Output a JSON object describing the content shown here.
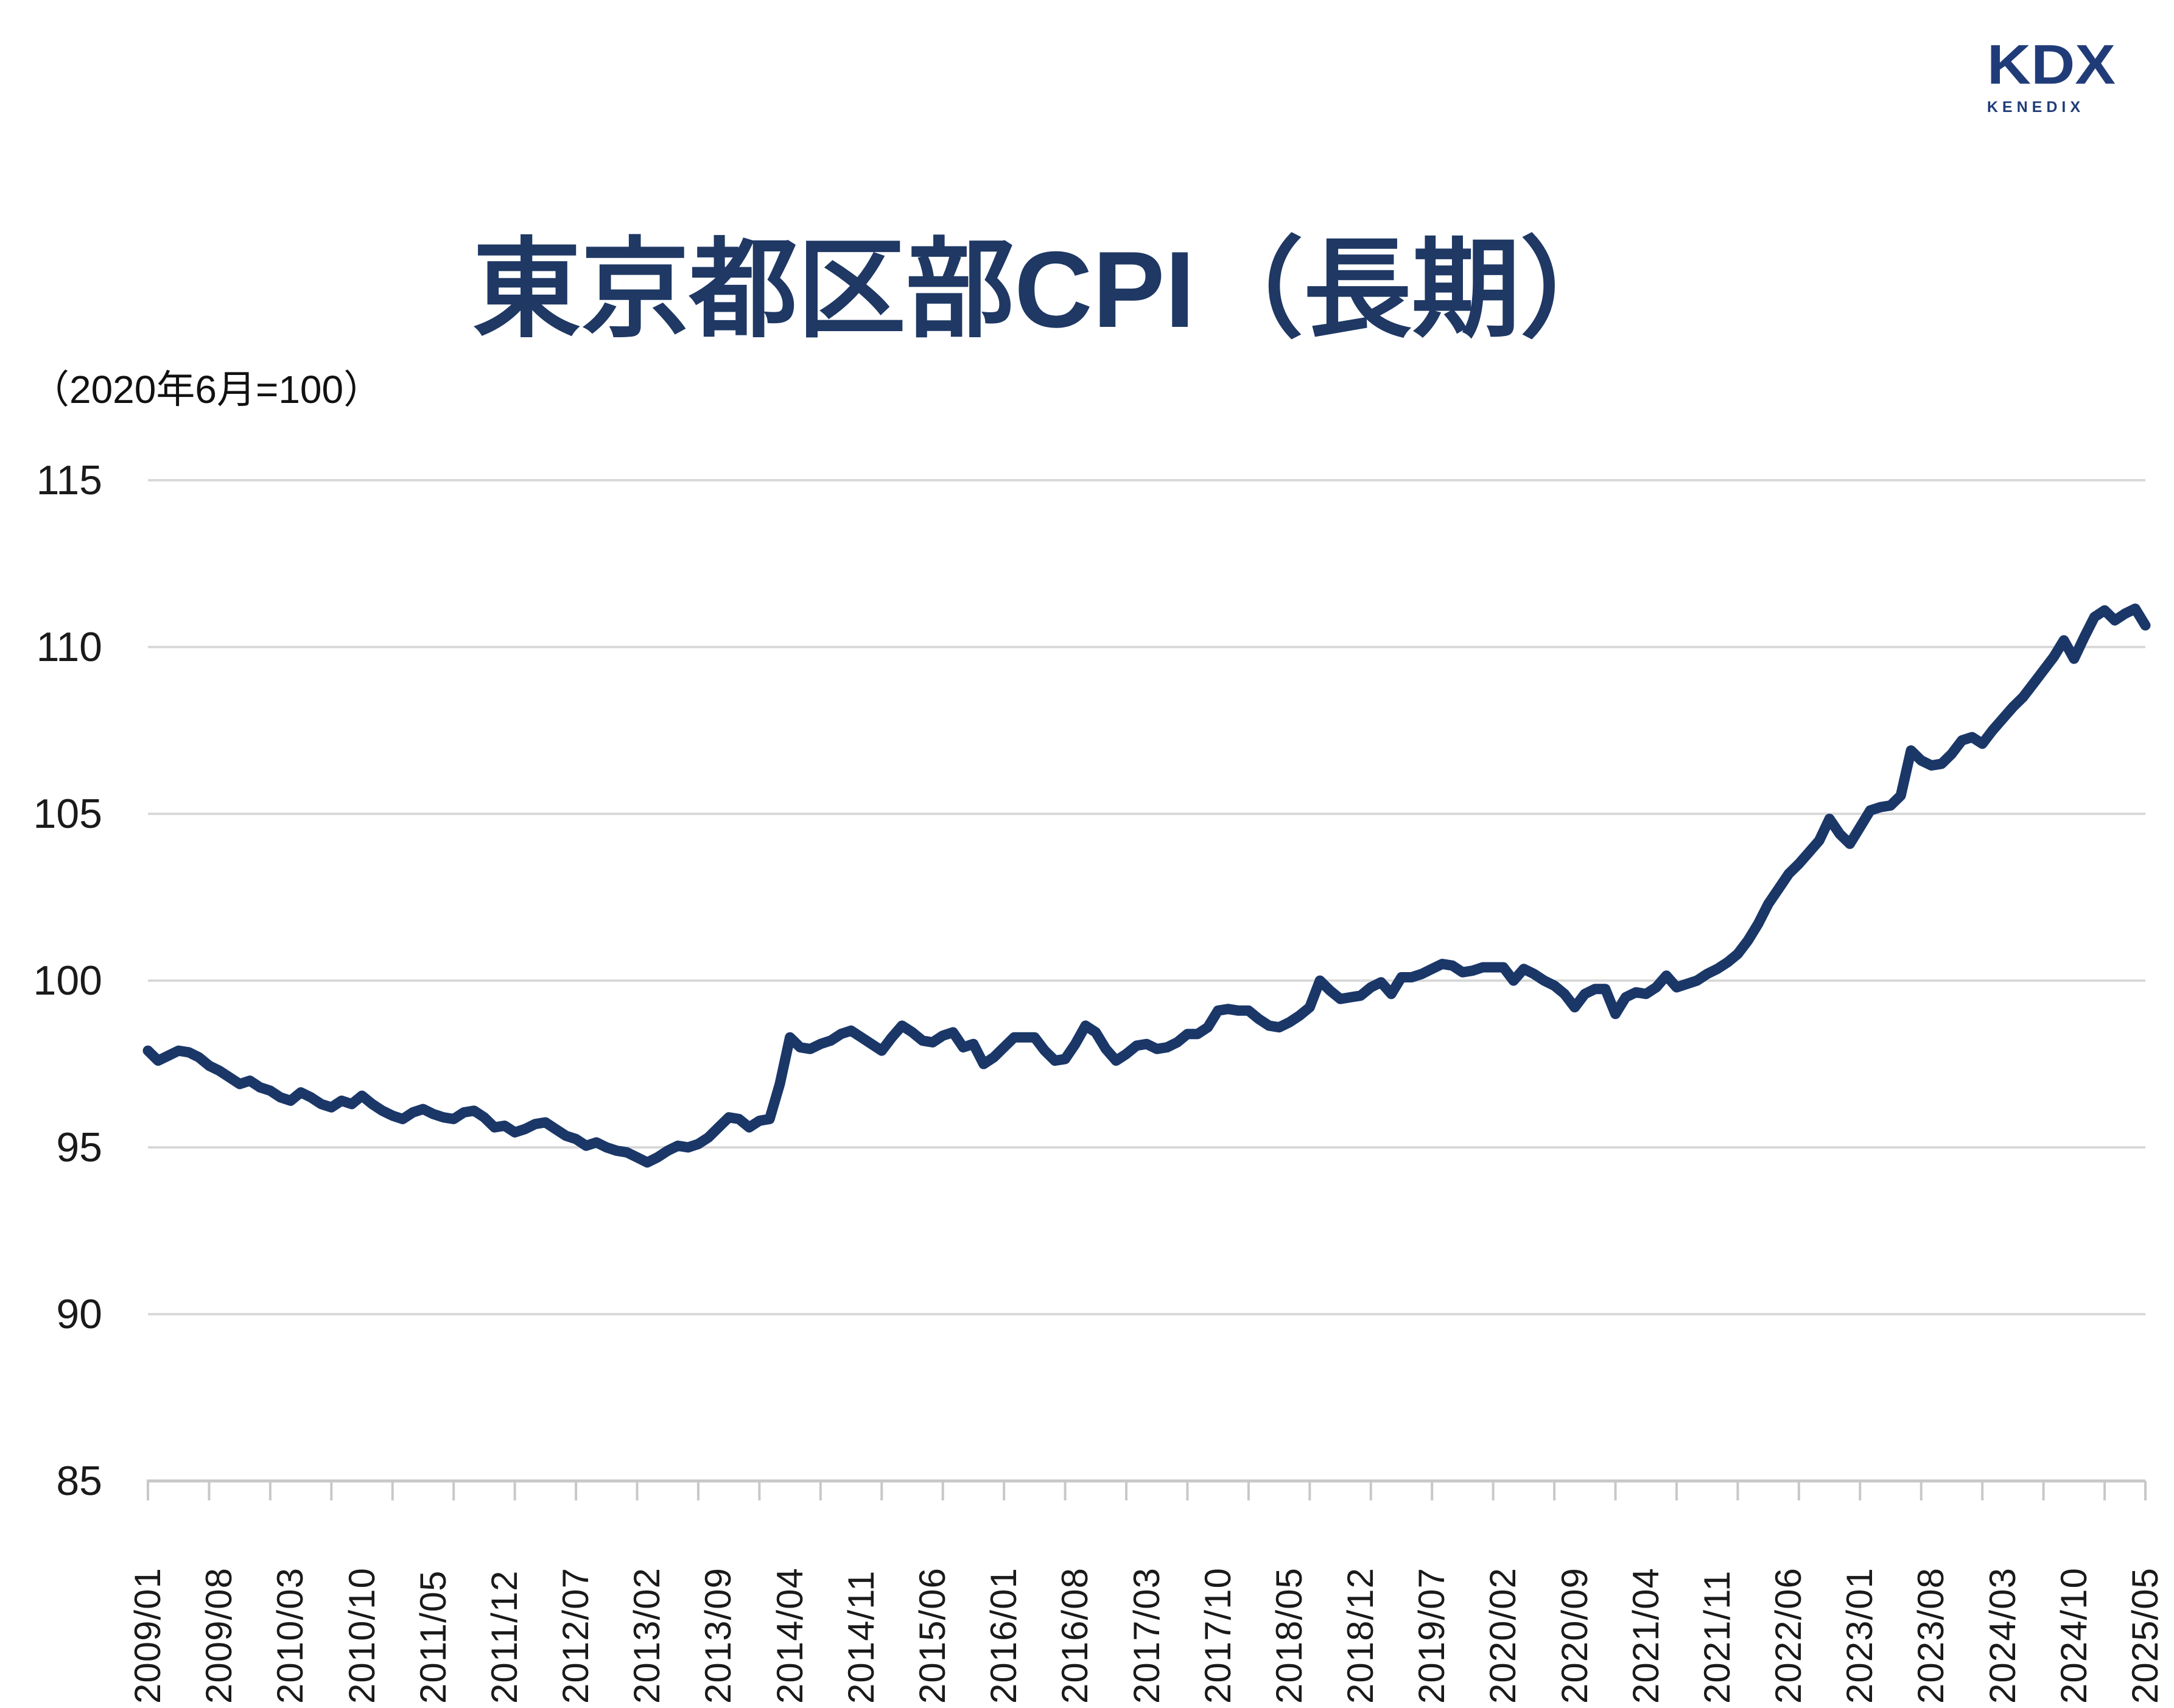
{
  "logo": {
    "text": "KDX",
    "subtext": "KENEDIX"
  },
  "chart_data": {
    "type": "line",
    "title": "東京都区部CPI（長期）",
    "subtitle": "（2020年6月=100）",
    "start_month": "2009/01",
    "end_month": "2025/05",
    "frequency": "monthly",
    "x_tick_labels": [
      "2009/01",
      "2009/08",
      "2010/03",
      "2010/10",
      "2011/05",
      "2011/12",
      "2012/07",
      "2013/02",
      "2013/09",
      "2014/04",
      "2014/11",
      "2015/06",
      "2016/01",
      "2016/08",
      "2017/03",
      "2017/10",
      "2018/05",
      "2018/12",
      "2019/07",
      "2020/02",
      "2020/09",
      "2021/04",
      "2021/11",
      "2022/06",
      "2023/01",
      "2023/08",
      "2024/03",
      "2024/10",
      "2025/05"
    ],
    "x_label_interval_months": 7,
    "x_minor_tick_interval_months": 6,
    "ylim": [
      85,
      115
    ],
    "yticks": [
      85,
      90,
      95,
      100,
      105,
      110,
      115
    ],
    "grid": true,
    "legend": "none",
    "line_color": "#1a3768",
    "grid_color": "#d9d9d9",
    "axis_color": "#c8c8c8",
    "values": [
      97.9,
      97.6,
      97.75,
      97.9,
      97.85,
      97.7,
      97.45,
      97.3,
      97.1,
      96.9,
      97.0,
      96.8,
      96.7,
      96.5,
      96.4,
      96.65,
      96.5,
      96.3,
      96.2,
      96.4,
      96.3,
      96.55,
      96.3,
      96.1,
      95.95,
      95.85,
      96.05,
      96.15,
      96.0,
      95.9,
      95.85,
      96.05,
      96.1,
      95.9,
      95.6,
      95.65,
      95.45,
      95.55,
      95.7,
      95.75,
      95.55,
      95.35,
      95.25,
      95.05,
      95.15,
      95.0,
      94.9,
      94.85,
      94.7,
      94.55,
      94.7,
      94.9,
      95.05,
      95.0,
      95.1,
      95.3,
      95.6,
      95.9,
      95.85,
      95.6,
      95.8,
      95.85,
      96.9,
      98.3,
      98.0,
      97.95,
      98.1,
      98.2,
      98.4,
      98.5,
      98.3,
      98.1,
      97.9,
      98.3,
      98.65,
      98.45,
      98.2,
      98.15,
      98.35,
      98.45,
      98.0,
      98.1,
      97.5,
      97.7,
      98.0,
      98.3,
      98.3,
      98.3,
      97.9,
      97.6,
      97.65,
      98.1,
      98.65,
      98.45,
      97.95,
      97.6,
      97.8,
      98.05,
      98.1,
      97.95,
      98.0,
      98.15,
      98.4,
      98.4,
      98.6,
      99.1,
      99.15,
      99.1,
      99.1,
      98.85,
      98.65,
      98.6,
      98.75,
      98.95,
      99.2,
      100.0,
      99.7,
      99.45,
      99.5,
      99.55,
      99.8,
      99.95,
      99.6,
      100.1,
      100.1,
      100.2,
      100.35,
      100.5,
      100.45,
      100.25,
      100.3,
      100.4,
      100.4,
      100.4,
      100.0,
      100.35,
      100.2,
      100.0,
      99.85,
      99.6,
      99.2,
      99.6,
      99.75,
      99.75,
      99.0,
      99.5,
      99.65,
      99.6,
      99.8,
      100.15,
      99.8,
      99.9,
      100.0,
      100.2,
      100.35,
      100.55,
      100.8,
      101.2,
      101.7,
      102.3,
      102.75,
      103.2,
      103.5,
      103.85,
      104.2,
      104.85,
      104.4,
      104.1,
      104.6,
      105.1,
      105.2,
      105.25,
      105.55,
      106.9,
      106.6,
      106.45,
      106.5,
      106.8,
      107.2,
      107.3,
      107.1,
      107.5,
      107.85,
      108.2,
      108.5,
      108.9,
      109.3,
      109.7,
      110.2,
      109.65,
      110.3,
      110.9,
      111.1,
      110.8,
      111.0,
      111.15,
      110.65
    ]
  }
}
